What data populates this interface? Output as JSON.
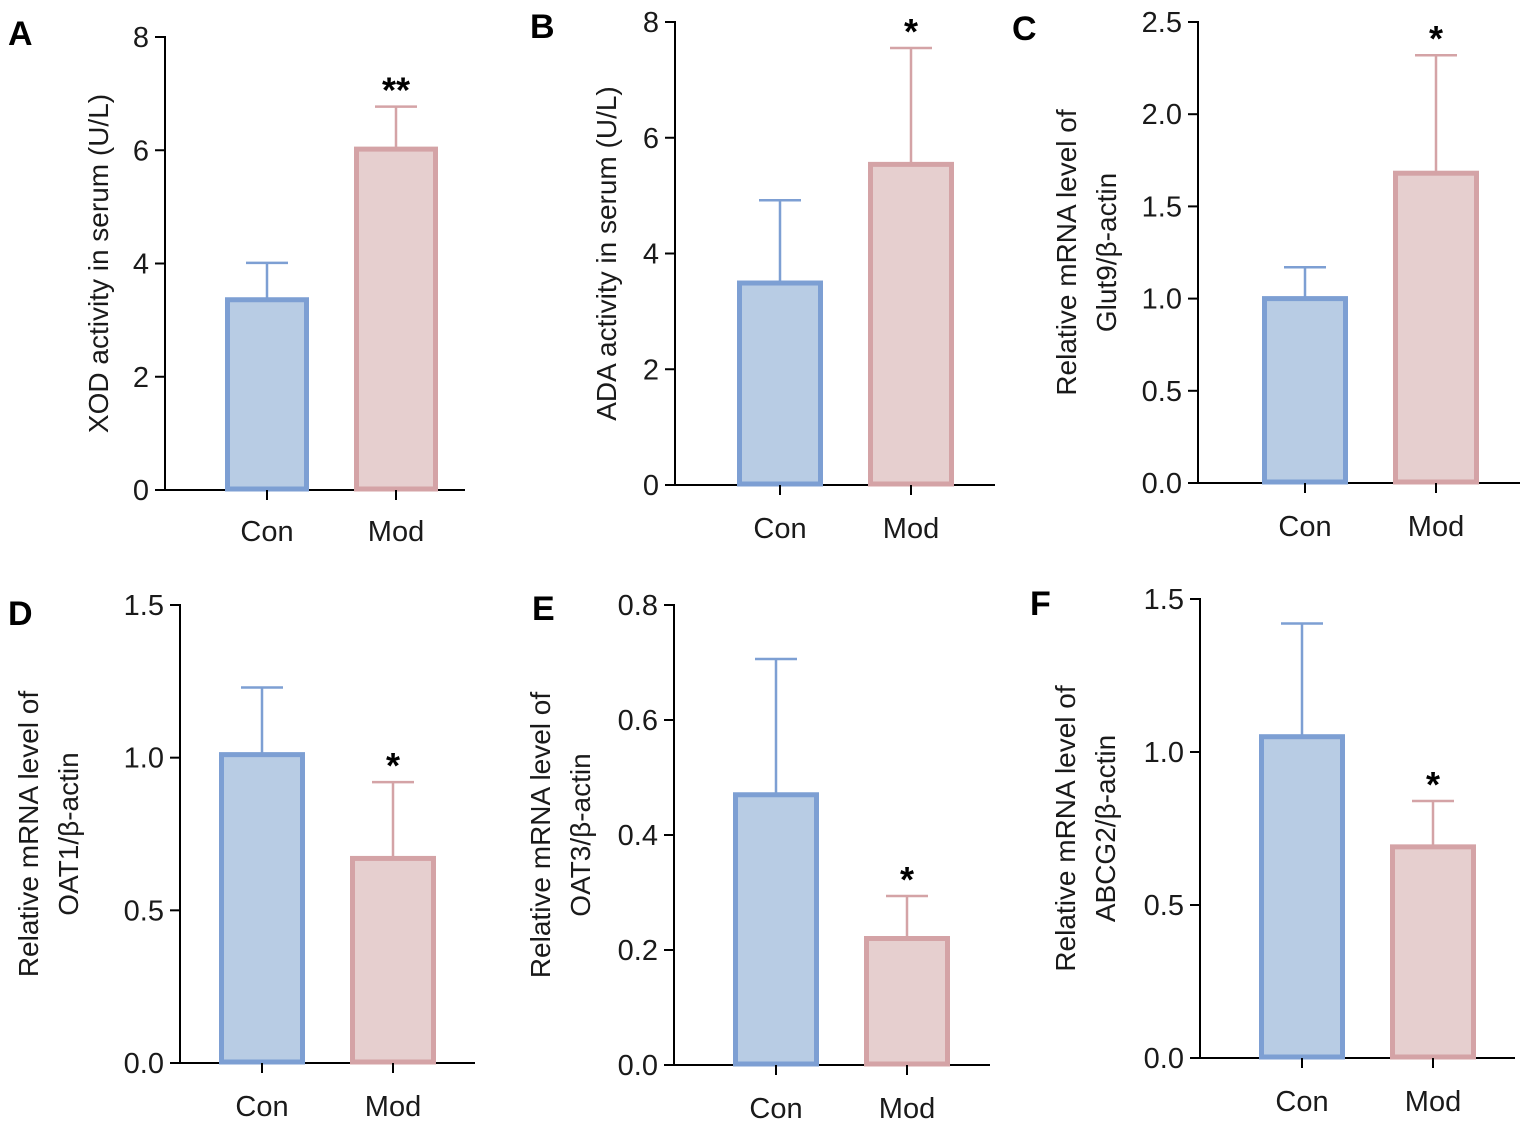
{
  "colors": {
    "con_fill": "#b8cce4",
    "con_stroke": "#7d9fd3",
    "mod_fill": "#e6cfcf",
    "mod_stroke": "#d4a3a6",
    "axis": "#000000"
  },
  "chart_data": [
    {
      "panel": "A",
      "type": "bar",
      "categories": [
        "Con",
        "Mod"
      ],
      "values": [
        3.36,
        6.02
      ],
      "errors_upper": [
        4.01,
        6.77
      ],
      "significance": [
        "",
        "**"
      ],
      "ylabel": [
        "XOD activity in serum (U/L)"
      ],
      "ylim": [
        0,
        8
      ],
      "yticks": [
        "0",
        "2",
        "4",
        "6",
        "8"
      ]
    },
    {
      "panel": "B",
      "type": "bar",
      "categories": [
        "Con",
        "Mod"
      ],
      "values": [
        3.49,
        5.54
      ],
      "errors_upper": [
        4.92,
        7.55
      ],
      "significance": [
        "",
        "*"
      ],
      "ylabel": [
        "ADA activity in serum (U/L)"
      ],
      "ylim": [
        0,
        8
      ],
      "yticks": [
        "0",
        "2",
        "4",
        "6",
        "8"
      ]
    },
    {
      "panel": "C",
      "type": "bar",
      "categories": [
        "Con",
        "Mod"
      ],
      "values": [
        1.0,
        1.68
      ],
      "errors_upper": [
        1.17,
        2.32
      ],
      "significance": [
        "",
        "*"
      ],
      "ylabel": [
        "Relative mRNA level of",
        "Glut9/β-actin"
      ],
      "ylim": [
        0,
        2.5
      ],
      "yticks": [
        "0.0",
        "0.5",
        "1.0",
        "1.5",
        "2.0",
        "2.5"
      ]
    },
    {
      "panel": "D",
      "type": "bar",
      "categories": [
        "Con",
        "Mod"
      ],
      "values": [
        1.01,
        0.67
      ],
      "errors_upper": [
        1.23,
        0.92
      ],
      "significance": [
        "",
        "*"
      ],
      "ylabel": [
        "Relative mRNA level of",
        "OAT1/β-actin"
      ],
      "ylim": [
        0,
        1.5
      ],
      "yticks": [
        "0.0",
        "0.5",
        "1.0",
        "1.5"
      ]
    },
    {
      "panel": "E",
      "type": "bar",
      "categories": [
        "Con",
        "Mod"
      ],
      "values": [
        0.47,
        0.22
      ],
      "errors_upper": [
        0.706,
        0.294
      ],
      "significance": [
        "",
        "*"
      ],
      "ylabel": [
        "Relative mRNA level of",
        "OAT3/β-actin"
      ],
      "ylim": [
        0,
        0.8
      ],
      "yticks": [
        "0.0",
        "0.2",
        "0.4",
        "0.6",
        "0.8"
      ]
    },
    {
      "panel": "F",
      "type": "bar",
      "categories": [
        "Con",
        "Mod"
      ],
      "values": [
        1.05,
        0.69
      ],
      "errors_upper": [
        1.42,
        0.84
      ],
      "significance": [
        "",
        "*"
      ],
      "ylabel": [
        "Relative mRNA level of",
        "ABCG2/β-actin"
      ],
      "ylim": [
        0,
        1.5
      ],
      "yticks": [
        "0.0",
        "0.5",
        "1.0",
        "1.5"
      ]
    }
  ]
}
